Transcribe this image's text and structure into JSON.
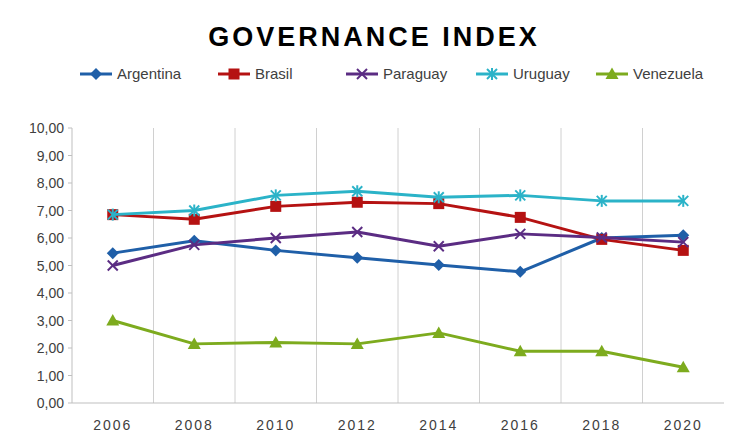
{
  "chart_data": {
    "type": "line",
    "title": "GOVERNANCE INDEX",
    "categories": [
      "2006",
      "2008",
      "2010",
      "2012",
      "2014",
      "2016",
      "2018",
      "2020"
    ],
    "series": [
      {
        "name": "Argentina",
        "color": "#1f5fa8",
        "marker": "diamond",
        "values": [
          5.45,
          5.9,
          5.55,
          5.28,
          5.02,
          4.77,
          6.0,
          6.1
        ]
      },
      {
        "name": "Brasil",
        "color": "#b51212",
        "marker": "square",
        "values": [
          6.85,
          6.68,
          7.15,
          7.3,
          7.25,
          6.75,
          5.95,
          5.55
        ]
      },
      {
        "name": "Paraguay",
        "color": "#5b2c83",
        "marker": "x",
        "values": [
          5.0,
          5.75,
          6.0,
          6.22,
          5.7,
          6.15,
          6.02,
          5.85
        ]
      },
      {
        "name": "Uruguay",
        "color": "#2bb3c8",
        "marker": "asterisk",
        "values": [
          6.85,
          7.0,
          7.55,
          7.7,
          7.48,
          7.55,
          7.35,
          7.35
        ]
      },
      {
        "name": "Venezuela",
        "color": "#7dab1e",
        "marker": "triangle",
        "values": [
          3.0,
          2.15,
          2.2,
          2.15,
          2.55,
          1.88,
          1.88,
          1.3
        ]
      }
    ],
    "ylim": [
      0,
      10
    ],
    "yticks": [
      {
        "value": 0,
        "label": "0,00"
      },
      {
        "value": 1,
        "label": "1,00"
      },
      {
        "value": 2,
        "label": "2,00"
      },
      {
        "value": 3,
        "label": "3,00"
      },
      {
        "value": 4,
        "label": "4,00"
      },
      {
        "value": 5,
        "label": "5,00"
      },
      {
        "value": 6,
        "label": "6,00"
      },
      {
        "value": 7,
        "label": "7,00"
      },
      {
        "value": 8,
        "label": "8,00"
      },
      {
        "value": 9,
        "label": "9,00"
      },
      {
        "value": 10,
        "label": "10,00"
      }
    ],
    "grid": true,
    "legend": "top"
  }
}
